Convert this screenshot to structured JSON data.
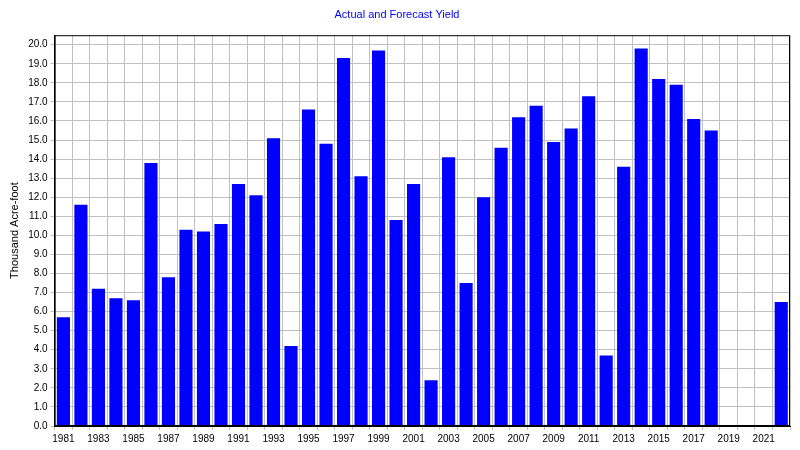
{
  "chart_data": {
    "type": "bar",
    "title": "Actual and Forecast Yield",
    "y_label": "Thousand Acre-foot",
    "categories": [
      "1981",
      null,
      "1983",
      null,
      "1985",
      null,
      "1987",
      null,
      "1989",
      null,
      "1991",
      null,
      "1993",
      null,
      "1995",
      null,
      "1997",
      null,
      "1999",
      null,
      "2001",
      null,
      "2003",
      null,
      "2005",
      null,
      "2007",
      null,
      "2009",
      null,
      "2011",
      null,
      "2013",
      null,
      "2015",
      null,
      "2017",
      null,
      "2019",
      null,
      "2021",
      null
    ],
    "values": [
      5.7,
      11.6,
      7.2,
      6.7,
      6.6,
      13.8,
      7.8,
      10.3,
      10.2,
      10.6,
      12.7,
      12.1,
      15.1,
      4.2,
      16.6,
      14.8,
      19.3,
      13.1,
      19.7,
      10.8,
      12.7,
      2.4,
      14.1,
      7.5,
      12.0,
      14.6,
      16.2,
      16.8,
      14.9,
      15.6,
      17.3,
      3.7,
      13.6,
      19.8,
      18.2,
      17.9,
      16.1,
      15.5,
      null,
      null,
      null,
      6.5
    ],
    "color": "#0000ff",
    "ylim": [
      0,
      20.5
    ],
    "yticks": [
      {
        "value": 0,
        "label": "0.0"
      },
      {
        "value": 1,
        "label": "1.0"
      },
      {
        "value": 2,
        "label": "2.0"
      },
      {
        "value": 3,
        "label": "3.0"
      },
      {
        "value": 4,
        "label": "4.0"
      },
      {
        "value": 5,
        "label": "5.0"
      },
      {
        "value": 6,
        "label": "6.0"
      },
      {
        "value": 7,
        "label": "7.0"
      },
      {
        "value": 8,
        "label": "8.0"
      },
      {
        "value": 9,
        "label": "9.0"
      },
      {
        "value": 10,
        "label": "10.0"
      },
      {
        "value": 11,
        "label": "11.0"
      },
      {
        "value": 12,
        "label": "12.0"
      },
      {
        "value": 13,
        "label": "13.0"
      },
      {
        "value": 14,
        "label": "14.0"
      },
      {
        "value": 15,
        "label": "15.0"
      },
      {
        "value": 16,
        "label": "16.0"
      },
      {
        "value": 17,
        "label": "17.0"
      },
      {
        "value": 18,
        "label": "18.0"
      },
      {
        "value": 19,
        "label": "19.0"
      },
      {
        "value": 20,
        "label": "20.0"
      }
    ],
    "grid": true
  }
}
